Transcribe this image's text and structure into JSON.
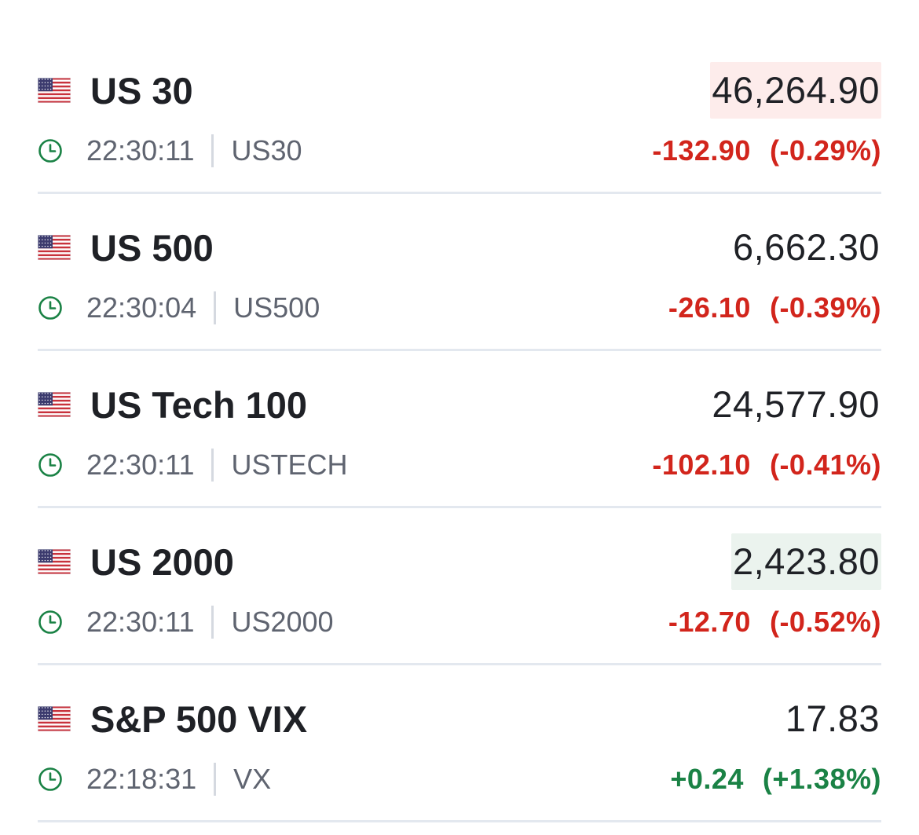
{
  "colors": {
    "negative": "#d2251c",
    "positive": "#1a8245",
    "clock_icon": "#1a8245"
  },
  "instruments": [
    {
      "name": "US 30",
      "price": "46,264.90",
      "time": "22:30:11",
      "symbol": "US30",
      "change": "-132.90",
      "change_pct": "(-0.29%)",
      "direction": "down",
      "flash": "down",
      "icon": "us-flag-icon"
    },
    {
      "name": "US 500",
      "price": "6,662.30",
      "time": "22:30:04",
      "symbol": "US500",
      "change": "-26.10",
      "change_pct": "(-0.39%)",
      "direction": "down",
      "flash": "none",
      "icon": "us-flag-icon"
    },
    {
      "name": "US Tech 100",
      "price": "24,577.90",
      "time": "22:30:11",
      "symbol": "USTECH",
      "change": "-102.10",
      "change_pct": "(-0.41%)",
      "direction": "down",
      "flash": "none",
      "icon": "us-flag-icon"
    },
    {
      "name": "US 2000",
      "price": "2,423.80",
      "time": "22:30:11",
      "symbol": "US2000",
      "change": "-12.70",
      "change_pct": "(-0.52%)",
      "direction": "down",
      "flash": "up",
      "icon": "us-flag-icon"
    },
    {
      "name": "S&P 500 VIX",
      "price": "17.83",
      "time": "22:18:31",
      "symbol": "VX",
      "change": "+0.24",
      "change_pct": "(+1.38%)",
      "direction": "up",
      "flash": "none",
      "icon": "us-flag-icon"
    }
  ]
}
